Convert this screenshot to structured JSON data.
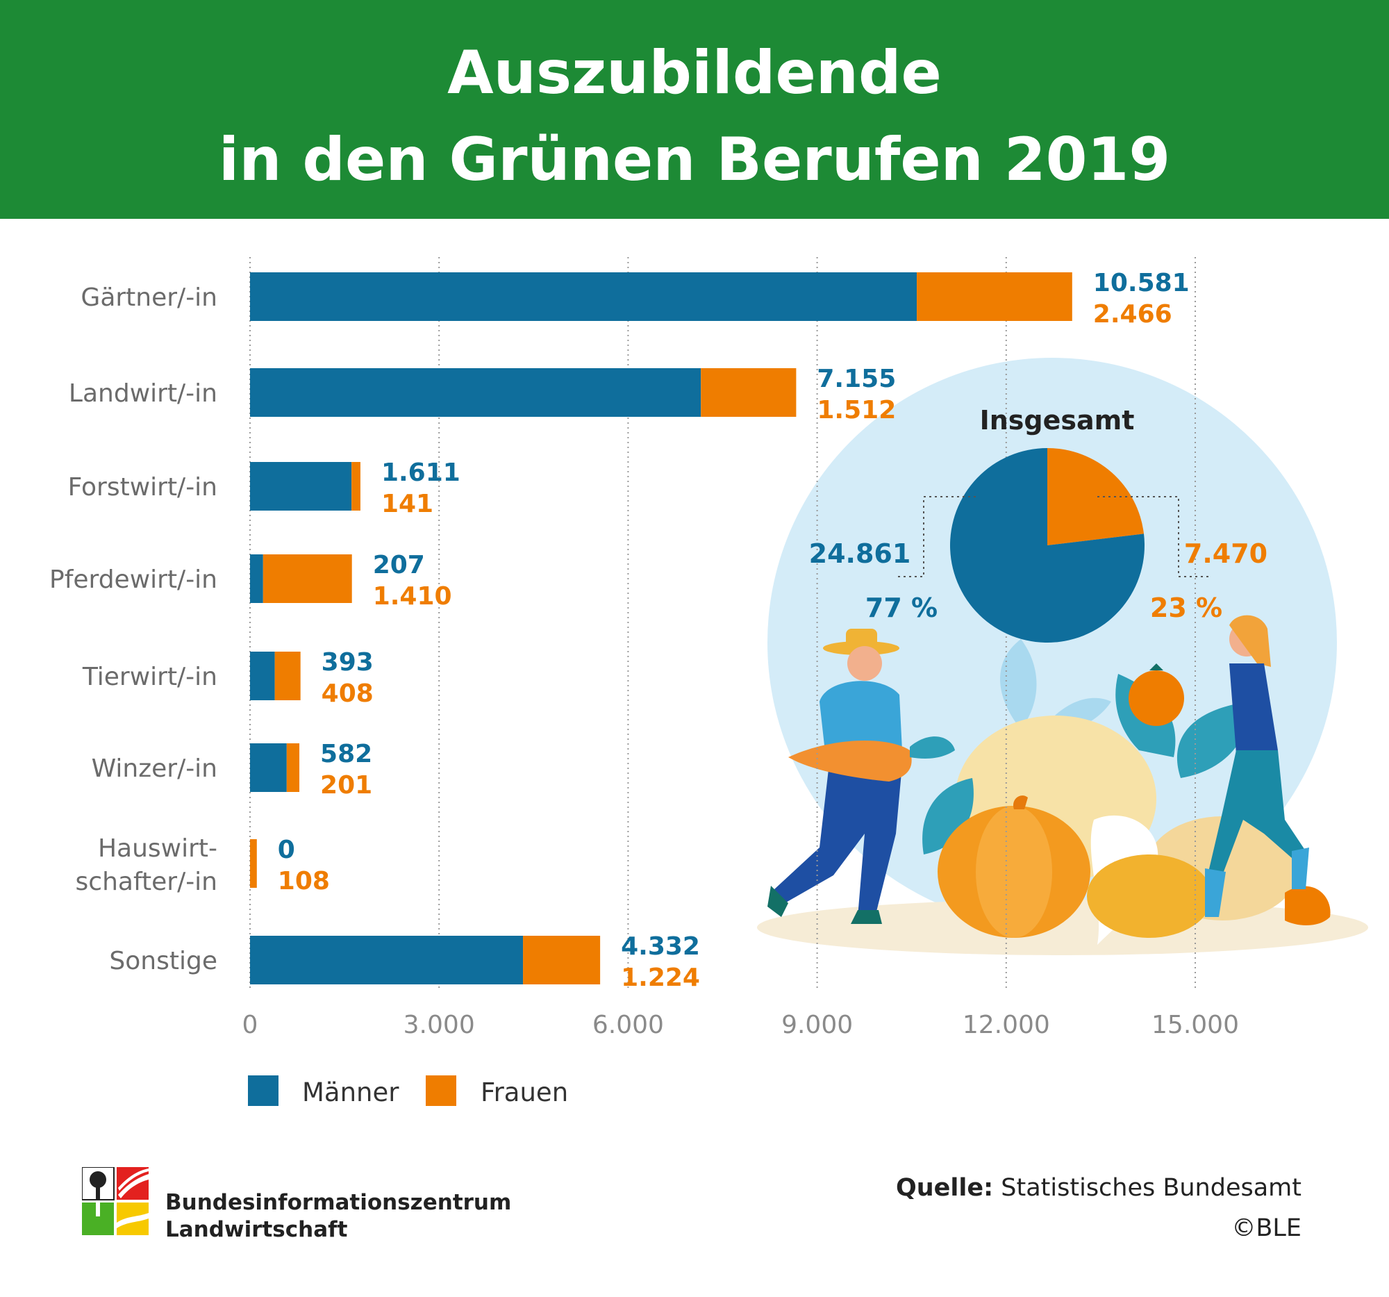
{
  "header": {
    "title_line1": "Auszubildende",
    "title_line2": "in den Grünen Berufen 2019"
  },
  "chart_data": [
    {
      "type": "bar",
      "stacked": true,
      "orientation": "horizontal",
      "categories": [
        "Gärtner/-in",
        "Landwirt/-in",
        "Forstwirt/-in",
        "Pferdewirt/-in",
        "Tierwirt/-in",
        "Winzer/-in",
        "Hauswirt-\nschafter/-in",
        "Sonstige"
      ],
      "series": [
        {
          "name": "Männer",
          "color": "#0f6e9c",
          "values": [
            10581,
            7155,
            1611,
            207,
            393,
            582,
            0,
            4332
          ]
        },
        {
          "name": "Frauen",
          "color": "#ef7d00",
          "values": [
            2466,
            1512,
            141,
            1410,
            408,
            201,
            108,
            1224
          ]
        }
      ],
      "value_labels": {
        "Männer": [
          "10.581",
          "7.155",
          "1.611",
          "207",
          "393",
          "582",
          "0",
          "4.332"
        ],
        "Frauen": [
          "2.466",
          "1.512",
          "141",
          "1.410",
          "408",
          "201",
          "108",
          "1.224"
        ]
      },
      "xlim": [
        0,
        15000
      ],
      "xticks": [
        0,
        3000,
        6000,
        9000,
        12000,
        15000
      ],
      "xtick_labels": [
        "0",
        "3.000",
        "6.000",
        "9.000",
        "12.000",
        "15.000"
      ],
      "grid": "vertical dotted",
      "legend": {
        "placement": "bottom-left",
        "entries": [
          "Männer",
          "Frauen"
        ]
      }
    },
    {
      "type": "pie",
      "title": "Insgesamt",
      "slices": [
        {
          "name": "Männer",
          "value": 24861,
          "label": "24.861",
          "percent_label": "77 %",
          "color": "#0f6e9c"
        },
        {
          "name": "Frauen",
          "value": 7470,
          "label": "7.470",
          "percent_label": "23 %",
          "color": "#ef7d00"
        }
      ]
    }
  ],
  "footer": {
    "logo_line1": "Bundesinformationszentrum",
    "logo_line2": "Landwirtschaft",
    "source_label": "Quelle:",
    "source_text": "Statistisches Bundesamt",
    "copyright": "©BLE"
  },
  "colors": {
    "header_green": "#1d8a35",
    "maenner_blue": "#0f6e9c",
    "frauen_orange": "#ef7d00",
    "circle_bg": "#d4ecf8"
  },
  "illustration_icons": [
    "farmer-man-with-carrot-icon",
    "farmer-woman-with-tomato-icon",
    "pumpkin-icon",
    "vegetables-icon"
  ]
}
